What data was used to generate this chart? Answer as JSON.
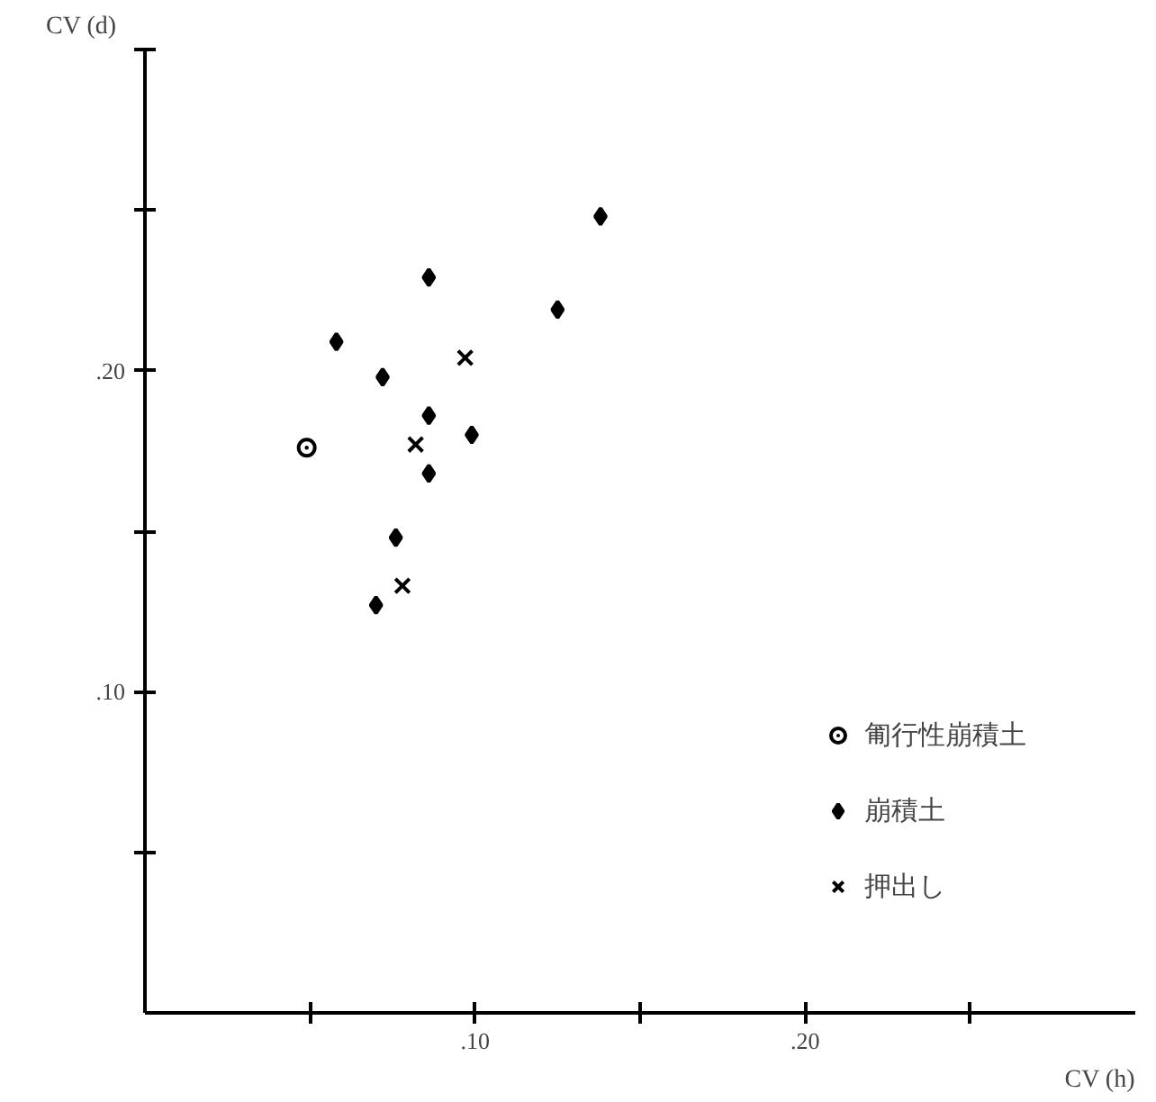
{
  "chart_data": {
    "type": "scatter",
    "xlabel": "CV (h)",
    "ylabel": "CV (d)",
    "xlim": [
      0,
      0.3
    ],
    "ylim": [
      0,
      0.3
    ],
    "xticks": [
      {
        "value": 0.05,
        "label": null
      },
      {
        "value": 0.1,
        "label": ".10"
      },
      {
        "value": 0.15,
        "label": null
      },
      {
        "value": 0.2,
        "label": ".20"
      },
      {
        "value": 0.25,
        "label": null
      }
    ],
    "yticks": [
      {
        "value": 0.05,
        "label": null
      },
      {
        "value": 0.1,
        "label": ".10"
      },
      {
        "value": 0.15,
        "label": null
      },
      {
        "value": 0.2,
        "label": ".20"
      },
      {
        "value": 0.25,
        "label": null
      },
      {
        "value": 0.3,
        "label": null
      }
    ],
    "grid": false,
    "legend": "bottom right",
    "series": [
      {
        "name": "匍行性崩積土",
        "color": "#000000",
        "marker": "circle",
        "x": [
          0.049
        ],
        "values": [
          0.176
        ]
      },
      {
        "name": "崩積土",
        "color": "#000000",
        "marker": "diamond",
        "x": [
          0.138,
          0.086,
          0.125,
          0.058,
          0.072,
          0.086,
          0.099,
          0.086,
          0.076,
          0.07
        ],
        "values": [
          0.248,
          0.229,
          0.219,
          0.209,
          0.198,
          0.186,
          0.18,
          0.168,
          0.148,
          0.127
        ]
      },
      {
        "name": "押出し",
        "color": "#000000",
        "marker": "cross",
        "x": [
          0.097,
          0.082,
          0.078
        ],
        "values": [
          0.204,
          0.177,
          0.133
        ]
      }
    ]
  }
}
